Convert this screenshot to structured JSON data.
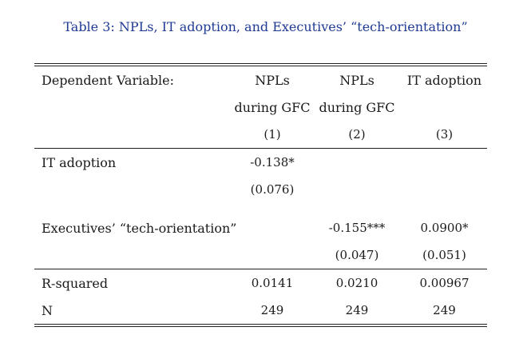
{
  "caption": "Table 3: NPLs, IT adoption, and Executives’ “tech-orientation”",
  "header": {
    "dependent_label": "Dependent Variable:",
    "columns": [
      {
        "line1": "NPLs",
        "line2": "during GFC",
        "number": "(1)"
      },
      {
        "line1": "NPLs",
        "line2": "during GFC",
        "number": "(2)"
      },
      {
        "line1": "IT adoption",
        "line2": "",
        "number": "(3)"
      }
    ]
  },
  "rows": {
    "it_adoption": {
      "label": "IT adoption",
      "coef": [
        "-0.138*",
        "",
        ""
      ],
      "se": [
        "(0.076)",
        "",
        ""
      ]
    },
    "tech_orientation": {
      "label": "Executives’ “tech-orientation”",
      "coef": [
        "",
        "-0.155***",
        "0.0900*"
      ],
      "se": [
        "",
        "(0.047)",
        "(0.051)"
      ]
    },
    "r_squared": {
      "label": "R-squared",
      "values": [
        "0.0141",
        "0.0210",
        "0.00967"
      ]
    },
    "n": {
      "label": "N",
      "values": [
        "249",
        "249",
        "249"
      ]
    }
  },
  "colors": {
    "caption": "#1f3a93",
    "text": "#1a1a1a"
  }
}
